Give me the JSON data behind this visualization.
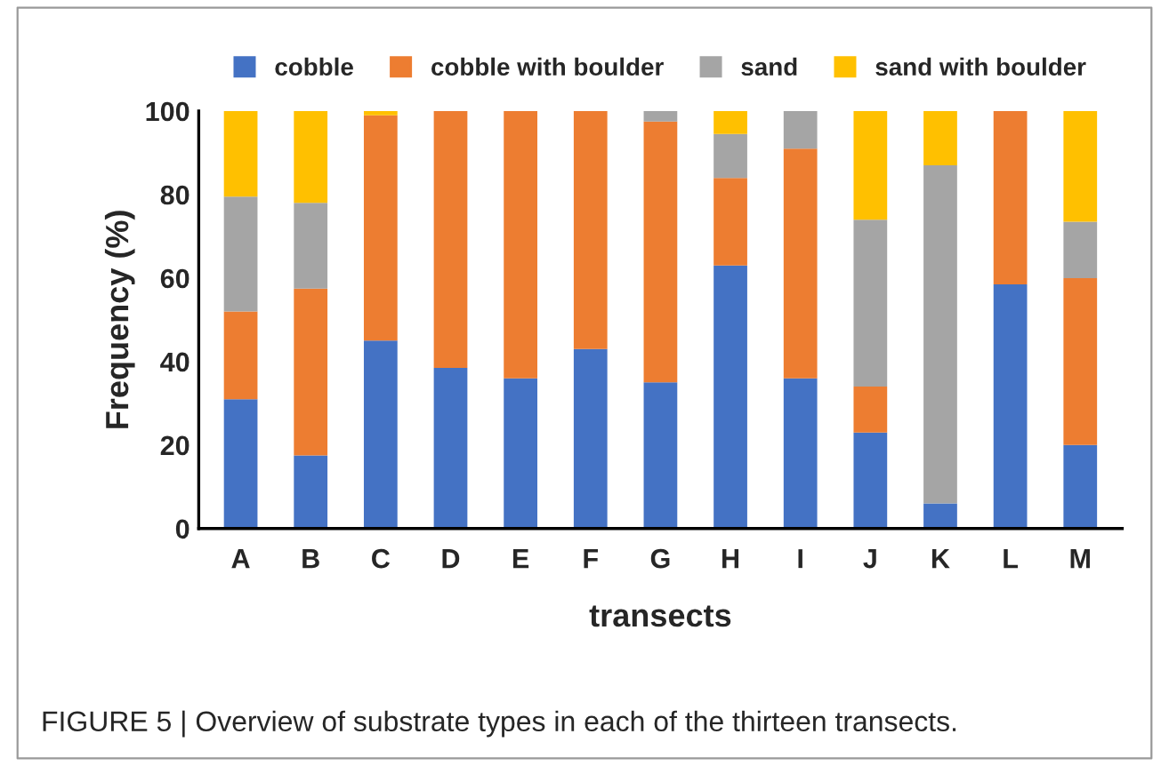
{
  "chart_data": {
    "type": "bar",
    "stacked": true,
    "xlabel": "transects",
    "ylabel": "Frequency (%)",
    "categories": [
      "A",
      "B",
      "C",
      "D",
      "E",
      "F",
      "G",
      "H",
      "I",
      "J",
      "K",
      "L",
      "M"
    ],
    "series": [
      {
        "name": "cobble",
        "color": "#4472c4",
        "values": [
          31,
          17.5,
          45,
          38.5,
          36,
          43,
          35,
          63,
          36,
          23,
          6,
          58.5,
          20
        ]
      },
      {
        "name": "cobble with boulder",
        "color": "#ed7d31",
        "values": [
          21,
          40,
          54,
          61.5,
          64,
          57,
          62.5,
          21,
          55,
          11,
          0,
          41.5,
          40
        ]
      },
      {
        "name": "sand",
        "color": "#a5a5a5",
        "values": [
          27.5,
          20.5,
          0,
          0,
          0,
          0,
          2.5,
          10.5,
          9,
          40,
          81,
          0,
          13.5
        ]
      },
      {
        "name": "sand with boulder",
        "color": "#ffc000",
        "values": [
          20.5,
          22,
          1,
          0,
          0,
          0,
          0,
          5.5,
          0,
          26,
          13,
          0,
          26.5
        ]
      }
    ],
    "ylim": [
      0,
      100
    ],
    "yticks": [
      0,
      20,
      40,
      60,
      80,
      100
    ],
    "grid": false,
    "legend": "top",
    "annotations": [
      "FIGURE 5 | Overview of substrate types in each of the thirteen transects."
    ]
  }
}
